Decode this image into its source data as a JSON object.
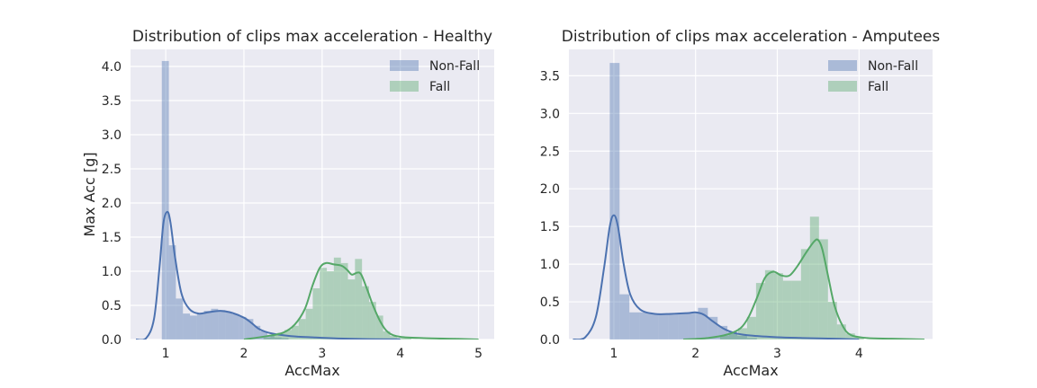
{
  "colors": {
    "background": "#EAEAF2",
    "grid": "#FFFFFF",
    "nonfall": "#4C72B0",
    "fall": "#55A868"
  },
  "chart_data": [
    {
      "type": "histogram_kde",
      "title": "Distribution of clips max acceleration - Healthy",
      "xlabel": "AccMax",
      "ylabel": "Max Acc [g]",
      "xlim": [
        0.55,
        5.2
      ],
      "ylim": [
        0,
        4.25
      ],
      "xticks": [
        "1",
        "2",
        "3",
        "4",
        "5"
      ],
      "yticks": [
        "0.0",
        "0.5",
        "1.0",
        "1.5",
        "2.0",
        "2.5",
        "3.0",
        "3.5",
        "4.0"
      ],
      "grid": true,
      "legend_position": "top-right",
      "series": [
        {
          "name": "Non-Fall",
          "bins": [
            [
              0.95,
              1.04,
              4.08
            ],
            [
              1.04,
              1.13,
              1.38
            ],
            [
              1.13,
              1.22,
              0.6
            ],
            [
              1.22,
              1.31,
              0.38
            ],
            [
              1.31,
              1.4,
              0.35
            ],
            [
              1.4,
              1.49,
              0.38
            ],
            [
              1.49,
              1.58,
              0.42
            ],
            [
              1.58,
              1.67,
              0.45
            ],
            [
              1.67,
              1.76,
              0.43
            ],
            [
              1.76,
              1.85,
              0.4
            ],
            [
              1.85,
              1.94,
              0.37
            ],
            [
              1.94,
              2.03,
              0.33
            ],
            [
              2.03,
              2.12,
              0.3
            ],
            [
              2.12,
              2.21,
              0.2
            ],
            [
              2.21,
              2.3,
              0.12
            ],
            [
              2.3,
              2.39,
              0.06
            ],
            [
              2.39,
              2.48,
              0.03
            ],
            [
              2.48,
              2.57,
              0.02
            ]
          ],
          "kde": [
            [
              0.62,
              0
            ],
            [
              0.75,
              0.02
            ],
            [
              0.85,
              0.3
            ],
            [
              0.92,
              1.05
            ],
            [
              0.97,
              1.7
            ],
            [
              1.02,
              1.87
            ],
            [
              1.06,
              1.72
            ],
            [
              1.12,
              1.2
            ],
            [
              1.2,
              0.68
            ],
            [
              1.3,
              0.45
            ],
            [
              1.42,
              0.38
            ],
            [
              1.55,
              0.4
            ],
            [
              1.7,
              0.42
            ],
            [
              1.85,
              0.39
            ],
            [
              2.0,
              0.32
            ],
            [
              2.1,
              0.24
            ],
            [
              2.2,
              0.15
            ],
            [
              2.35,
              0.09
            ],
            [
              2.6,
              0.05
            ],
            [
              2.9,
              0.03
            ],
            [
              3.2,
              0.015
            ],
            [
              3.6,
              0.005
            ],
            [
              4.0,
              0.001
            ]
          ]
        },
        {
          "name": "Fall",
          "bins": [
            [
              2.25,
              2.34,
              0.03
            ],
            [
              2.34,
              2.43,
              0.06
            ],
            [
              2.43,
              2.52,
              0.1
            ],
            [
              2.52,
              2.61,
              0.14
            ],
            [
              2.61,
              2.7,
              0.2
            ],
            [
              2.7,
              2.79,
              0.3
            ],
            [
              2.79,
              2.88,
              0.45
            ],
            [
              2.88,
              2.97,
              0.75
            ],
            [
              2.97,
              3.06,
              1.05
            ],
            [
              3.06,
              3.15,
              1.0
            ],
            [
              3.15,
              3.24,
              1.2
            ],
            [
              3.24,
              3.33,
              1.12
            ],
            [
              3.33,
              3.42,
              0.88
            ],
            [
              3.42,
              3.51,
              1.18
            ],
            [
              3.51,
              3.6,
              0.78
            ],
            [
              3.6,
              3.69,
              0.55
            ],
            [
              3.69,
              3.78,
              0.35
            ],
            [
              3.78,
              3.87,
              0.12
            ],
            [
              3.87,
              3.96,
              0.05
            ],
            [
              3.96,
              4.05,
              0.02
            ],
            [
              4.05,
              4.14,
              0.02
            ]
          ],
          "kde": [
            [
              2.0,
              0
            ],
            [
              2.3,
              0.05
            ],
            [
              2.5,
              0.1
            ],
            [
              2.65,
              0.22
            ],
            [
              2.78,
              0.45
            ],
            [
              2.88,
              0.8
            ],
            [
              2.97,
              1.05
            ],
            [
              3.05,
              1.12
            ],
            [
              3.15,
              1.1
            ],
            [
              3.25,
              1.08
            ],
            [
              3.32,
              1.02
            ],
            [
              3.38,
              0.95
            ],
            [
              3.45,
              0.98
            ],
            [
              3.5,
              0.95
            ],
            [
              3.58,
              0.72
            ],
            [
              3.65,
              0.5
            ],
            [
              3.75,
              0.25
            ],
            [
              3.85,
              0.1
            ],
            [
              4.0,
              0.04
            ],
            [
              4.3,
              0.02
            ],
            [
              4.7,
              0.01
            ],
            [
              5.0,
              0
            ]
          ]
        }
      ]
    },
    {
      "type": "histogram_kde",
      "title": "Distribution of clips max acceleration - Amputees",
      "xlabel": "AccMax",
      "ylabel": "",
      "xlim": [
        0.45,
        4.9
      ],
      "ylim": [
        0,
        3.85
      ],
      "xticks": [
        "1",
        "2",
        "3",
        "4"
      ],
      "yticks": [
        "0.0",
        "0.5",
        "1.0",
        "1.5",
        "2.0",
        "2.5",
        "3.0",
        "3.5"
      ],
      "grid": true,
      "legend_position": "top-right",
      "series": [
        {
          "name": "Non-Fall",
          "bins": [
            [
              0.95,
              1.07,
              3.67
            ],
            [
              1.07,
              1.19,
              0.6
            ],
            [
              1.19,
              1.31,
              0.36
            ],
            [
              1.31,
              1.43,
              0.36
            ],
            [
              1.43,
              1.55,
              0.34
            ],
            [
              1.55,
              1.67,
              0.33
            ],
            [
              1.67,
              1.79,
              0.35
            ],
            [
              1.79,
              1.91,
              0.34
            ],
            [
              1.91,
              2.03,
              0.35
            ],
            [
              2.03,
              2.15,
              0.42
            ],
            [
              2.15,
              2.27,
              0.3
            ],
            [
              2.27,
              2.39,
              0.18
            ],
            [
              2.39,
              2.51,
              0.1
            ],
            [
              2.51,
              2.63,
              0.05
            ],
            [
              2.63,
              2.75,
              0.02
            ]
          ],
          "kde": [
            [
              0.5,
              0
            ],
            [
              0.65,
              0.03
            ],
            [
              0.78,
              0.3
            ],
            [
              0.88,
              0.95
            ],
            [
              0.95,
              1.5
            ],
            [
              1.0,
              1.65
            ],
            [
              1.05,
              1.5
            ],
            [
              1.12,
              1.0
            ],
            [
              1.2,
              0.6
            ],
            [
              1.32,
              0.4
            ],
            [
              1.5,
              0.34
            ],
            [
              1.7,
              0.34
            ],
            [
              1.9,
              0.35
            ],
            [
              2.0,
              0.36
            ],
            [
              2.1,
              0.33
            ],
            [
              2.2,
              0.25
            ],
            [
              2.35,
              0.14
            ],
            [
              2.5,
              0.08
            ],
            [
              2.7,
              0.05
            ],
            [
              3.0,
              0.03
            ],
            [
              3.3,
              0.02
            ],
            [
              3.7,
              0.01
            ],
            [
              4.0,
              0
            ]
          ]
        },
        {
          "name": "Fall",
          "bins": [
            [
              2.3,
              2.41,
              0.05
            ],
            [
              2.41,
              2.52,
              0.08
            ],
            [
              2.52,
              2.63,
              0.15
            ],
            [
              2.63,
              2.74,
              0.3
            ],
            [
              2.74,
              2.85,
              0.75
            ],
            [
              2.85,
              2.96,
              0.92
            ],
            [
              2.96,
              3.07,
              0.88
            ],
            [
              3.07,
              3.18,
              0.78
            ],
            [
              3.18,
              3.29,
              0.78
            ],
            [
              3.29,
              3.4,
              1.2
            ],
            [
              3.4,
              3.51,
              1.63
            ],
            [
              3.51,
              3.62,
              1.33
            ],
            [
              3.62,
              3.73,
              0.5
            ],
            [
              3.73,
              3.84,
              0.2
            ],
            [
              3.84,
              3.95,
              0.08
            ],
            [
              3.95,
              4.06,
              0.03
            ]
          ],
          "kde": [
            [
              1.85,
              0
            ],
            [
              2.15,
              0.02
            ],
            [
              2.4,
              0.07
            ],
            [
              2.55,
              0.15
            ],
            [
              2.65,
              0.3
            ],
            [
              2.75,
              0.55
            ],
            [
              2.85,
              0.82
            ],
            [
              2.95,
              0.9
            ],
            [
              3.05,
              0.85
            ],
            [
              3.15,
              0.85
            ],
            [
              3.25,
              0.98
            ],
            [
              3.35,
              1.15
            ],
            [
              3.45,
              1.3
            ],
            [
              3.5,
              1.32
            ],
            [
              3.55,
              1.2
            ],
            [
              3.62,
              0.85
            ],
            [
              3.7,
              0.45
            ],
            [
              3.8,
              0.18
            ],
            [
              3.9,
              0.06
            ],
            [
              4.1,
              0.02
            ],
            [
              4.4,
              0.01
            ],
            [
              4.8,
              0
            ]
          ]
        }
      ]
    }
  ]
}
